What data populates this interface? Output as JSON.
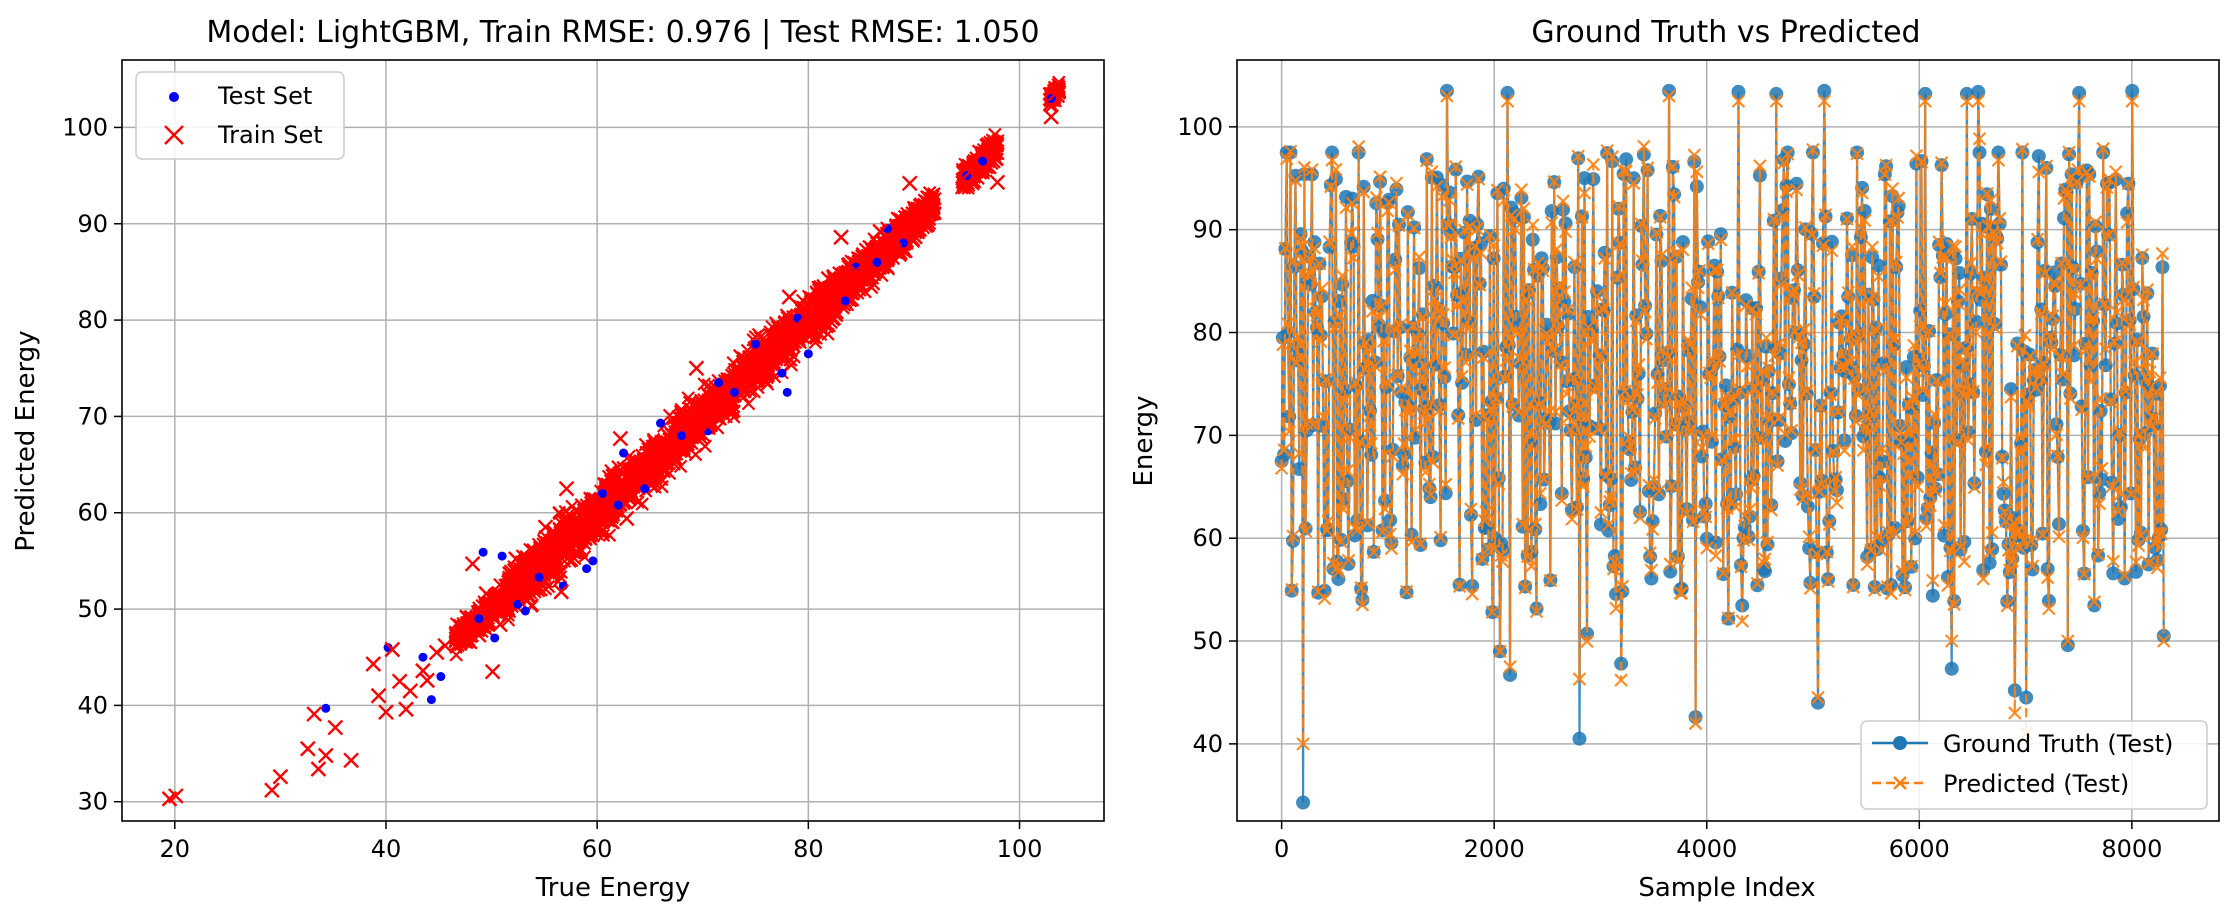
{
  "colors": {
    "test_scatter": "#0000ff",
    "train_scatter": "#ff0000",
    "ground_truth": "#1f77b4",
    "predicted": "#ff7f0e",
    "grid": "#b0b0b0"
  },
  "chart_data": [
    {
      "type": "scatter",
      "title": "Model: LightGBM, Train RMSE: 0.976 | Test RMSE: 1.050",
      "xlabel": "True Energy",
      "ylabel": "Predicted Energy",
      "xlim": [
        15,
        108
      ],
      "ylim": [
        28,
        107
      ],
      "xticks": [
        20,
        40,
        60,
        80,
        100
      ],
      "yticks": [
        30,
        40,
        50,
        60,
        70,
        80,
        90,
        100
      ],
      "grid": true,
      "legend": "upper-left",
      "series": [
        {
          "name": "Test Set",
          "marker": "dot",
          "color": "#0000ff",
          "points": [
            [
              34.3,
              39.7
            ],
            [
              40.2,
              46.0
            ],
            [
              43.5,
              45.0
            ],
            [
              44.3,
              40.6
            ],
            [
              45.2,
              43.0
            ],
            [
              48.8,
              49.0
            ],
            [
              49.2,
              55.9
            ],
            [
              50.3,
              47.0
            ],
            [
              51.0,
              55.5
            ],
            [
              52.5,
              50.5
            ],
            [
              53.2,
              49.8
            ],
            [
              54.5,
              53.3
            ],
            [
              56.8,
              52.4
            ],
            [
              59.0,
              54.2
            ],
            [
              59.6,
              55.0
            ],
            [
              60.5,
              62.0
            ],
            [
              62.0,
              60.8
            ],
            [
              62.5,
              66.2
            ],
            [
              64.5,
              62.5
            ],
            [
              66.0,
              69.3
            ],
            [
              68.0,
              68.0
            ],
            [
              70.5,
              68.5
            ],
            [
              71.5,
              73.5
            ],
            [
              73.0,
              72.5
            ],
            [
              75.0,
              77.5
            ],
            [
              77.5,
              74.5
            ],
            [
              78.0,
              72.5
            ],
            [
              79.0,
              80.2
            ],
            [
              80.0,
              76.5
            ],
            [
              83.5,
              82.0
            ],
            [
              84.5,
              85.5
            ],
            [
              86.5,
              86.0
            ],
            [
              87.5,
              89.5
            ],
            [
              89.0,
              88.0
            ],
            [
              95.0,
              95.0
            ],
            [
              96.5,
              96.5
            ],
            [
              103.0,
              103.0
            ]
          ]
        },
        {
          "name": "Train Set",
          "marker": "x",
          "color": "#ff0000",
          "points": [
            [
              19.5,
              30.3
            ],
            [
              20.1,
              30.6
            ],
            [
              29.2,
              31.2
            ],
            [
              30.0,
              32.6
            ],
            [
              32.6,
              35.5
            ],
            [
              33.2,
              39.1
            ],
            [
              33.6,
              33.4
            ],
            [
              34.3,
              34.8
            ],
            [
              35.2,
              37.7
            ],
            [
              36.7,
              34.3
            ],
            [
              38.8,
              44.3
            ],
            [
              39.3,
              41.0
            ],
            [
              40.0,
              39.3
            ],
            [
              40.6,
              45.8
            ],
            [
              41.3,
              42.5
            ],
            [
              41.9,
              39.6
            ],
            [
              42.3,
              41.5
            ],
            [
              43.5,
              43.6
            ],
            [
              43.9,
              42.6
            ],
            [
              44.8,
              45.5
            ],
            [
              45.6,
              46.2
            ],
            [
              47.1,
              48.2
            ],
            [
              48.2,
              54.7
            ],
            [
              48.8,
              47.3
            ],
            [
              49.5,
              51.6
            ],
            [
              50.1,
              43.5
            ],
            [
              50.8,
              48.4
            ],
            [
              52.3,
              55.2
            ],
            [
              53.4,
              51.4
            ],
            [
              54.6,
              52.1
            ],
            [
              55.1,
              58.5
            ],
            [
              56.6,
              51.8
            ],
            [
              57.1,
              62.5
            ],
            [
              58.8,
              60.2
            ],
            [
              60.5,
              58.1
            ],
            [
              61.6,
              63.8
            ],
            [
              62.2,
              67.7
            ],
            [
              62.8,
              59.4
            ],
            [
              64.2,
              64.8
            ],
            [
              66.2,
              66.5
            ],
            [
              68.0,
              70.4
            ],
            [
              69.4,
              75.0
            ],
            [
              70.5,
              69.0
            ],
            [
              71.8,
              71.8
            ],
            [
              73.6,
              76.2
            ],
            [
              75.1,
              73.9
            ],
            [
              77.0,
              79.6
            ],
            [
              78.2,
              82.4
            ],
            [
              79.8,
              80.5
            ],
            [
              81.9,
              84.3
            ],
            [
              83.1,
              88.6
            ],
            [
              84.5,
              85.1
            ],
            [
              86.8,
              89.2
            ],
            [
              88.1,
              87.2
            ],
            [
              89.6,
              94.2
            ],
            [
              90.6,
              90.1
            ],
            [
              95.3,
              95.4
            ],
            [
              97.9,
              94.3
            ],
            [
              103.0,
              101.1
            ],
            [
              103.4,
              103.5
            ]
          ]
        }
      ],
      "train_bands": [
        {
          "x_range": [
            46.5,
            51.5
          ],
          "y_center_offset": 0,
          "half_width": 2.0
        },
        {
          "x_range": [
            51.5,
            62.0
          ],
          "y_center_offset": 0,
          "half_width": 3.4
        },
        {
          "x_range": [
            62.0,
            84.0
          ],
          "y_center_offset": 0,
          "half_width": 3.0
        },
        {
          "x_range": [
            84.0,
            92.0
          ],
          "y_center_offset": 0,
          "half_width": 2.3
        },
        {
          "x_range": [
            94.5,
            98.0
          ],
          "y_center_offset": 0,
          "half_width": 1.6
        },
        {
          "x_range": [
            102.8,
            103.8
          ],
          "y_center_offset": 0,
          "half_width": 1.0
        }
      ]
    },
    {
      "type": "line",
      "title": "Ground Truth vs Predicted",
      "xlabel": "Sample Index",
      "ylabel": "Energy",
      "xlim": [
        -420,
        8820
      ],
      "ylim": [
        32.5,
        106.5
      ],
      "xticks": [
        0,
        2000,
        4000,
        6000,
        8000
      ],
      "yticks": [
        40,
        50,
        60,
        70,
        80,
        90,
        100
      ],
      "grid": true,
      "legend": "lower-right",
      "n_samples": 8300,
      "series": [
        {
          "name": "Ground Truth (Test)",
          "color": "#1f77b4",
          "marker": "o",
          "linestyle": "solid"
        },
        {
          "name": "Predicted (Test)",
          "color": "#ff7f0e",
          "marker": "x",
          "linestyle": "dashed"
        }
      ],
      "visible_extremes": [
        {
          "x": 200,
          "ground_truth": 34.3,
          "predicted": 40.0
        },
        {
          "x": 1560,
          "ground_truth": 103.5,
          "predicted": 103.0
        },
        {
          "x": 2050,
          "ground_truth": 49.0,
          "predicted": 49.0
        },
        {
          "x": 2120,
          "ground_truth": 103.3,
          "predicted": 102.5
        },
        {
          "x": 2150,
          "ground_truth": 46.7,
          "predicted": 47.5
        },
        {
          "x": 2800,
          "ground_truth": 40.5,
          "predicted": 46.3
        },
        {
          "x": 3200,
          "ground_truth": 47.8,
          "predicted": 46.2
        },
        {
          "x": 3650,
          "ground_truth": 103.5,
          "predicted": 103.0
        },
        {
          "x": 3900,
          "ground_truth": 42.6,
          "predicted": 42.0
        },
        {
          "x": 4300,
          "ground_truth": 103.4,
          "predicted": 102.5
        },
        {
          "x": 4650,
          "ground_truth": 103.2,
          "predicted": 102.5
        },
        {
          "x": 5050,
          "ground_truth": 44.0,
          "predicted": 44.5
        },
        {
          "x": 5100,
          "ground_truth": 103.5,
          "predicted": 102.5
        },
        {
          "x": 6050,
          "ground_truth": 103.2,
          "predicted": 102.5
        },
        {
          "x": 6300,
          "ground_truth": 47.3,
          "predicted": 50.0
        },
        {
          "x": 6450,
          "ground_truth": 103.2,
          "predicted": 102.5
        },
        {
          "x": 6550,
          "ground_truth": 103.4,
          "predicted": 102.5
        },
        {
          "x": 6900,
          "ground_truth": 45.2,
          "predicted": 43.0
        },
        {
          "x": 7000,
          "ground_truth": 44.5,
          "predicted": 41.0
        },
        {
          "x": 7400,
          "ground_truth": 49.6,
          "predicted": 50.0
        },
        {
          "x": 7500,
          "ground_truth": 103.3,
          "predicted": 102.5
        },
        {
          "x": 8000,
          "ground_truth": 103.5,
          "predicted": 102.5
        },
        {
          "x": 8300,
          "ground_truth": 50.5,
          "predicted": 50.0
        }
      ]
    }
  ]
}
